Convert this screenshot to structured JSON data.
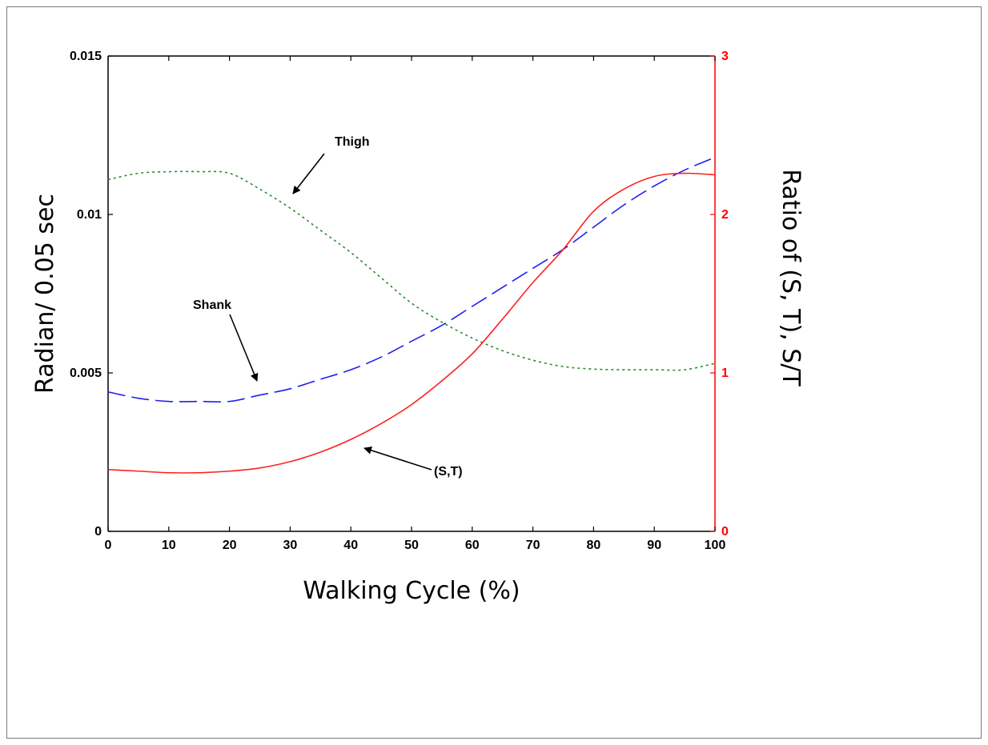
{
  "chart_data": {
    "type": "line",
    "xlabel": "Walking Cycle (%)",
    "ylabel_left": "Radian/ 0.05 sec",
    "ylabel_right": "Ratio of (S, T), S/T",
    "xlim": [
      0,
      100
    ],
    "ylim_left": [
      0,
      0.015
    ],
    "ylim_right": [
      0,
      3
    ],
    "x_ticks": [
      "0",
      "10",
      "20",
      "30",
      "40",
      "50",
      "60",
      "70",
      "80",
      "90",
      "100"
    ],
    "y_left_ticks": [
      "0",
      "0.005",
      "0.01",
      "0.015"
    ],
    "y_right_ticks": [
      "0",
      "1",
      "2",
      "3"
    ],
    "grid": false,
    "x": [
      0,
      5,
      10,
      15,
      20,
      25,
      30,
      35,
      40,
      45,
      50,
      55,
      60,
      65,
      70,
      75,
      80,
      85,
      90,
      95,
      100
    ],
    "series": [
      {
        "name": "Thigh",
        "axis": "left",
        "style": "dotted",
        "color": "#2e8b2e",
        "values": [
          0.0111,
          0.0113,
          0.01135,
          0.01135,
          0.0113,
          0.0108,
          0.0102,
          0.0095,
          0.0088,
          0.008,
          0.0072,
          0.0066,
          0.0061,
          0.0057,
          0.0054,
          0.0052,
          0.00512,
          0.0051,
          0.0051,
          0.0051,
          0.0053
        ]
      },
      {
        "name": "Shank",
        "axis": "left",
        "style": "dashed",
        "color": "#2020ee",
        "values": [
          0.0044,
          0.0042,
          0.0041,
          0.0041,
          0.0041,
          0.0043,
          0.0045,
          0.0048,
          0.0051,
          0.0055,
          0.006,
          0.0065,
          0.0071,
          0.0077,
          0.0083,
          0.0089,
          0.0096,
          0.0103,
          0.0109,
          0.0114,
          0.0118
        ]
      },
      {
        "name": "(S,T)",
        "axis": "right",
        "style": "solid",
        "color": "#ff2020",
        "values": [
          0.39,
          0.38,
          0.37,
          0.37,
          0.38,
          0.4,
          0.44,
          0.5,
          0.58,
          0.68,
          0.8,
          0.95,
          1.12,
          1.34,
          1.57,
          1.78,
          2.02,
          2.16,
          2.24,
          2.26,
          2.25
        ]
      }
    ],
    "annotations": [
      {
        "text": "Thigh",
        "target_series": "Thigh",
        "x": 30
      },
      {
        "text": "Shank",
        "target_series": "Shank",
        "x": 24
      },
      {
        "text": "(S,T)",
        "target_series": "(S,T)",
        "x": 42
      }
    ]
  },
  "colors": {
    "left_axis": "#000000",
    "right_axis": "#ff0000"
  }
}
